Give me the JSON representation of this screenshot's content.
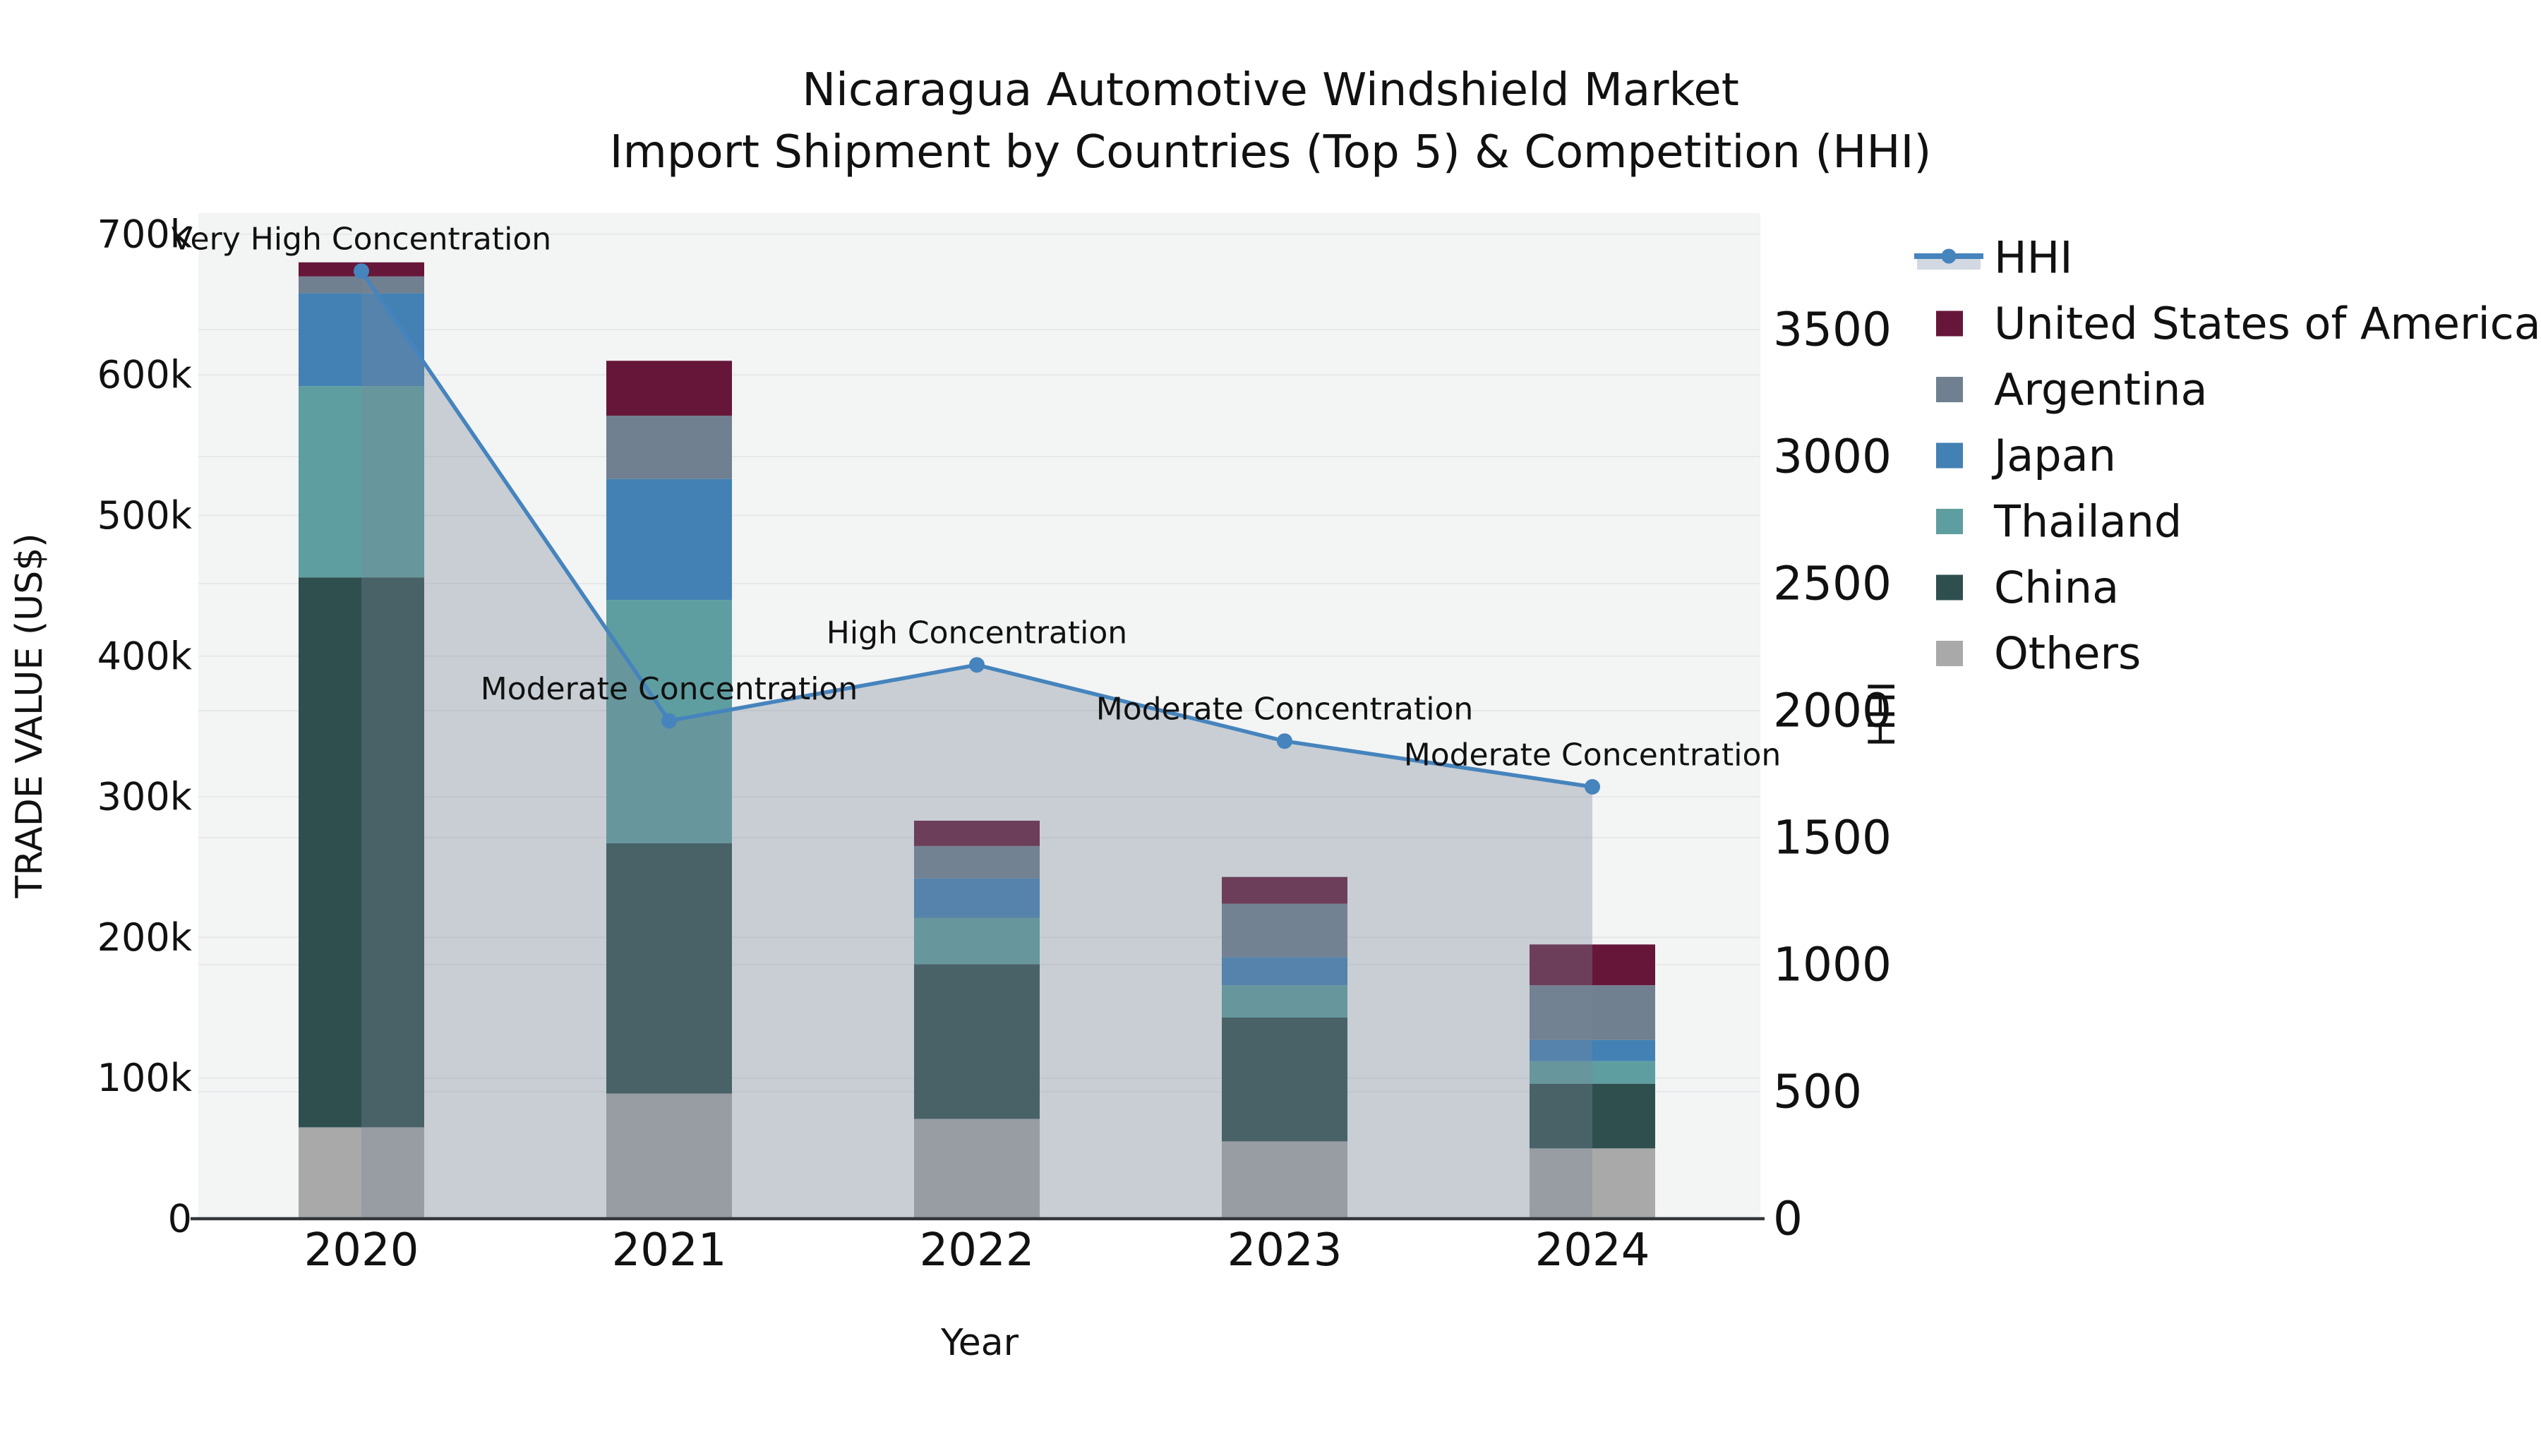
{
  "title": {
    "line1": "Nicaragua Automotive Windshield Market",
    "line2": "Import Shipment by Countries (Top 5) & Competition (HHI)"
  },
  "axes": {
    "left": {
      "label": "TRADE VALUE (US$)",
      "ticks": [
        {
          "label": "0",
          "value": 0
        },
        {
          "label": "100k",
          "value": 100000
        },
        {
          "label": "200k",
          "value": 200000
        },
        {
          "label": "300k",
          "value": 300000
        },
        {
          "label": "400k",
          "value": 400000
        },
        {
          "label": "500k",
          "value": 500000
        },
        {
          "label": "600k",
          "value": 600000
        },
        {
          "label": "700k",
          "value": 700000
        }
      ]
    },
    "right": {
      "label": "HHI",
      "ticks": [
        {
          "label": "0",
          "value": 0
        },
        {
          "label": "500",
          "value": 500
        },
        {
          "label": "1000",
          "value": 1000
        },
        {
          "label": "1500",
          "value": 1500
        },
        {
          "label": "2000",
          "value": 2000
        },
        {
          "label": "2500",
          "value": 2500
        },
        {
          "label": "3000",
          "value": 3000
        },
        {
          "label": "3500",
          "value": 3500
        }
      ]
    },
    "x": {
      "label": "Year",
      "categories": [
        "2020",
        "2021",
        "2022",
        "2023",
        "2024"
      ]
    }
  },
  "legend": {
    "items": [
      {
        "label": "HHI",
        "type": "line-marker",
        "color_key": "hhi"
      },
      {
        "label": "United States of America",
        "type": "patch",
        "color_key": "usa"
      },
      {
        "label": "Argentina",
        "type": "patch",
        "color_key": "argentina"
      },
      {
        "label": "Japan",
        "type": "patch",
        "color_key": "japan"
      },
      {
        "label": "Thailand",
        "type": "patch",
        "color_key": "thailand"
      },
      {
        "label": "China",
        "type": "patch",
        "color_key": "china"
      },
      {
        "label": "Others",
        "type": "patch",
        "color_key": "others"
      }
    ]
  },
  "colors": {
    "usa": "#661739",
    "argentina": "#708090",
    "japan": "#4381b5",
    "thailand": "#5f9ea0",
    "china": "#2f4f4f",
    "others": "#a9a9a9",
    "hhi_line": "#4684bd",
    "hhi_area_fill": "rgba(119,136,153,0.35)",
    "hhi_legend_band": "#d2d9e2",
    "plot_bg": "#f3f4f4",
    "grid": "#e7e8e9",
    "axis_line": "#33373b",
    "text": "#111111"
  },
  "chart_data": {
    "type": "bar+line",
    "title": "Nicaragua Automotive Windshield Market — Import Shipment by Countries (Top 5) & Competition (HHI)",
    "categories": [
      "2020",
      "2021",
      "2022",
      "2023",
      "2024"
    ],
    "bar_unit": "US$",
    "stack_order": "bottom-to-top",
    "series": [
      {
        "name": "Others",
        "color_key": "others",
        "values": [
          65000,
          89000,
          71000,
          55000,
          50000
        ]
      },
      {
        "name": "China",
        "color_key": "china",
        "values": [
          391000,
          178000,
          110000,
          88000,
          46000
        ]
      },
      {
        "name": "Thailand",
        "color_key": "thailand",
        "values": [
          136000,
          173000,
          33000,
          23000,
          16000
        ]
      },
      {
        "name": "Japan",
        "color_key": "japan",
        "values": [
          66000,
          86000,
          28000,
          20000,
          15000
        ]
      },
      {
        "name": "Argentina",
        "color_key": "argentina",
        "values": [
          12000,
          45000,
          23000,
          38000,
          39000
        ]
      },
      {
        "name": "United States of America",
        "color_key": "usa",
        "values": [
          10000,
          39000,
          18000,
          19000,
          29000
        ]
      }
    ],
    "bar_totals": [
      680000,
      610000,
      283000,
      243000,
      195000
    ],
    "line": {
      "name": "HHI",
      "axis": "right",
      "values": [
        3730,
        1960,
        2180,
        1880,
        1700
      ],
      "area_fill_under_line": true
    },
    "annotations": [
      {
        "year": "2020",
        "text": "Very High Concentration"
      },
      {
        "year": "2021",
        "text": "Moderate Concentration"
      },
      {
        "year": "2022",
        "text": "High Concentration"
      },
      {
        "year": "2023",
        "text": "Moderate Concentration"
      },
      {
        "year": "2024",
        "text": "Moderate Concentration"
      }
    ],
    "left_ylim": [
      0,
      700000
    ],
    "right_ylim": [
      0,
      3500
    ],
    "grid": true,
    "legend_position": "right"
  }
}
